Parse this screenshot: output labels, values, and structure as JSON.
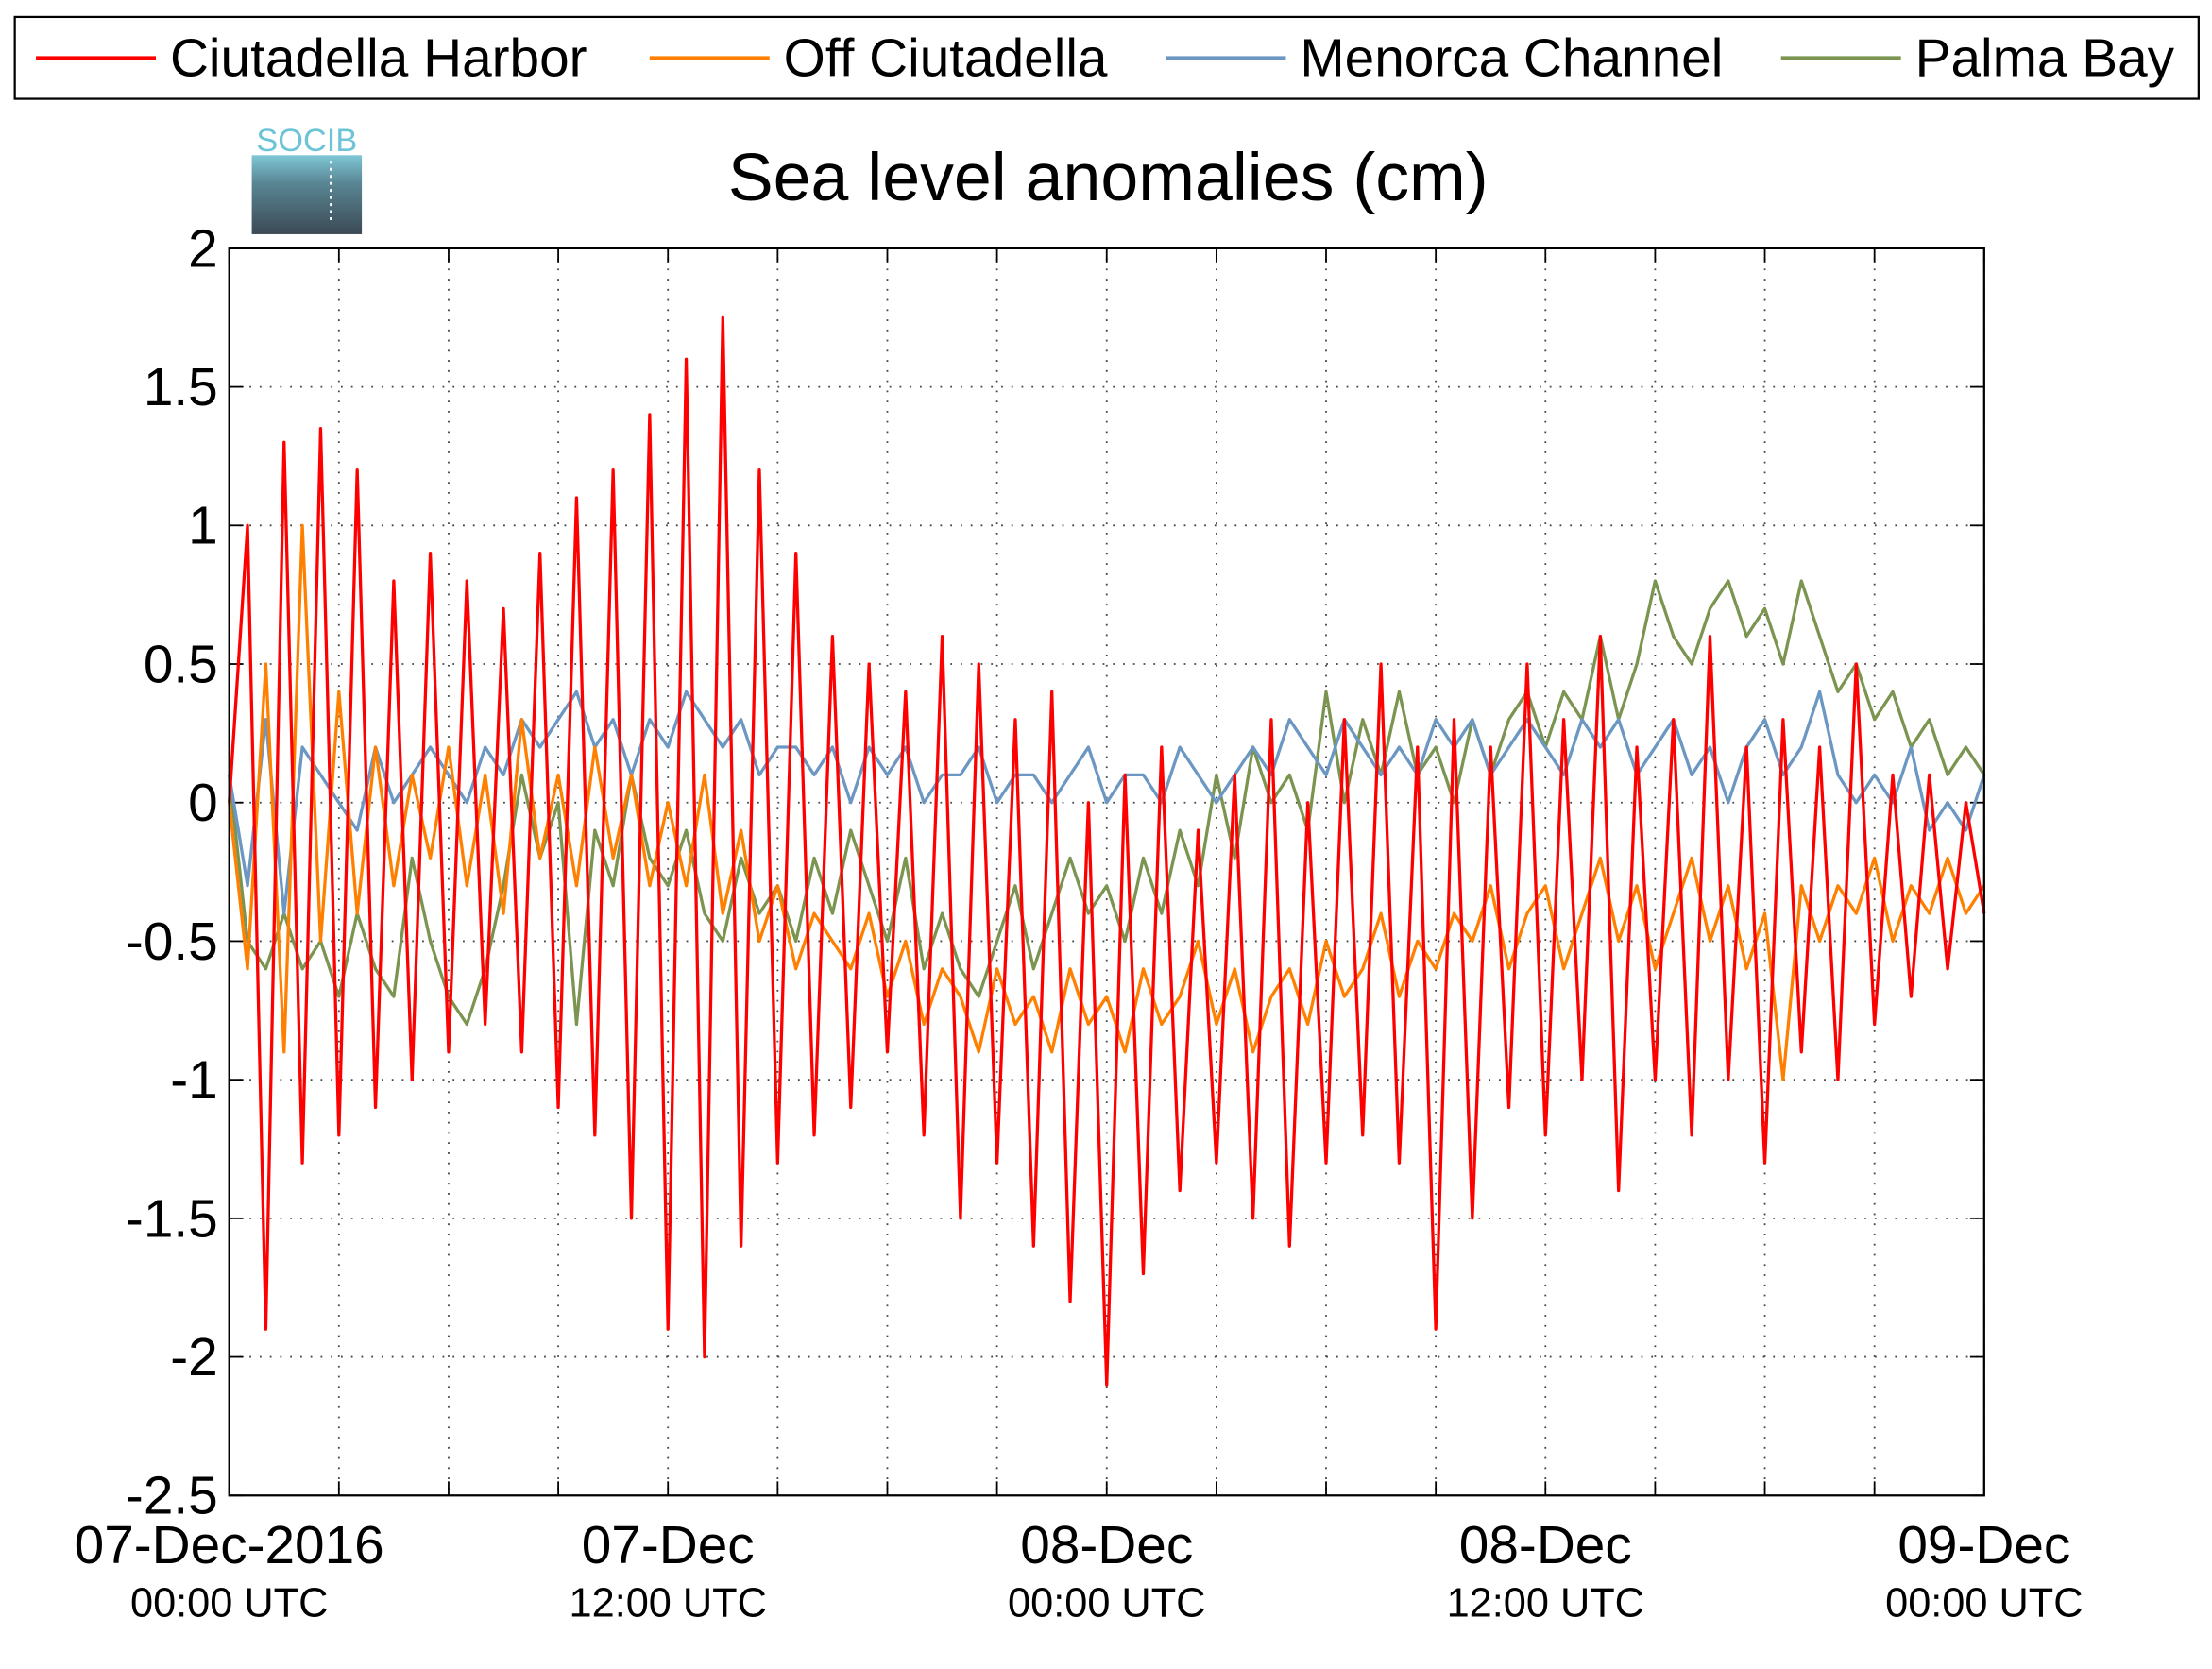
{
  "logo_text": "SOCIB",
  "chart_data": {
    "type": "line",
    "title": "Sea level anomalies (cm)",
    "xlim": [
      "2016-12-07T00:00",
      "2016-12-09T00:00"
    ],
    "xticks": [
      {
        "value": "2016-12-07T00:00",
        "label": "07-Dec-2016\n00:00 UTC"
      },
      {
        "value": "2016-12-07T03:00",
        "label": null
      },
      {
        "value": "2016-12-07T06:00",
        "label": null
      },
      {
        "value": "2016-12-07T09:00",
        "label": null
      },
      {
        "value": "2016-12-07T12:00",
        "label": "07-Dec\n12:00 UTC"
      },
      {
        "value": "2016-12-07T15:00",
        "label": null
      },
      {
        "value": "2016-12-07T18:00",
        "label": null
      },
      {
        "value": "2016-12-07T21:00",
        "label": null
      },
      {
        "value": "2016-12-08T00:00",
        "label": "08-Dec\n00:00 UTC"
      },
      {
        "value": "2016-12-08T03:00",
        "label": null
      },
      {
        "value": "2016-12-08T06:00",
        "label": null
      },
      {
        "value": "2016-12-08T09:00",
        "label": null
      },
      {
        "value": "2016-12-08T12:00",
        "label": "08-Dec\n12:00 UTC"
      },
      {
        "value": "2016-12-08T15:00",
        "label": null
      },
      {
        "value": "2016-12-08T18:00",
        "label": null
      },
      {
        "value": "2016-12-08T21:00",
        "label": null
      },
      {
        "value": "2016-12-09T00:00",
        "label": "09-Dec\n00:00 UTC"
      }
    ],
    "ylim": [
      -2.5,
      2
    ],
    "yticks": [
      -2.5,
      -2,
      -1.5,
      -1,
      -0.5,
      0,
      0.5,
      1,
      1.5,
      2
    ],
    "grid": true,
    "legend": "top",
    "x": [
      "2016-12-07T00:00",
      "2016-12-07T00:30",
      "2016-12-07T01:00",
      "2016-12-07T01:30",
      "2016-12-07T02:00",
      "2016-12-07T02:30",
      "2016-12-07T03:00",
      "2016-12-07T03:30",
      "2016-12-07T04:00",
      "2016-12-07T04:30",
      "2016-12-07T05:00",
      "2016-12-07T05:30",
      "2016-12-07T06:00",
      "2016-12-07T06:30",
      "2016-12-07T07:00",
      "2016-12-07T07:30",
      "2016-12-07T08:00",
      "2016-12-07T08:30",
      "2016-12-07T09:00",
      "2016-12-07T09:30",
      "2016-12-07T10:00",
      "2016-12-07T10:30",
      "2016-12-07T11:00",
      "2016-12-07T11:30",
      "2016-12-07T12:00",
      "2016-12-07T12:30",
      "2016-12-07T13:00",
      "2016-12-07T13:30",
      "2016-12-07T14:00",
      "2016-12-07T14:30",
      "2016-12-07T15:00",
      "2016-12-07T15:30",
      "2016-12-07T16:00",
      "2016-12-07T16:30",
      "2016-12-07T17:00",
      "2016-12-07T17:30",
      "2016-12-07T18:00",
      "2016-12-07T18:30",
      "2016-12-07T19:00",
      "2016-12-07T19:30",
      "2016-12-07T20:00",
      "2016-12-07T20:30",
      "2016-12-07T21:00",
      "2016-12-07T21:30",
      "2016-12-07T22:00",
      "2016-12-07T22:30",
      "2016-12-07T23:00",
      "2016-12-07T23:30",
      "2016-12-08T00:00",
      "2016-12-08T00:30",
      "2016-12-08T01:00",
      "2016-12-08T01:30",
      "2016-12-08T02:00",
      "2016-12-08T02:30",
      "2016-12-08T03:00",
      "2016-12-08T03:30",
      "2016-12-08T04:00",
      "2016-12-08T04:30",
      "2016-12-08T05:00",
      "2016-12-08T05:30",
      "2016-12-08T06:00",
      "2016-12-08T06:30",
      "2016-12-08T07:00",
      "2016-12-08T07:30",
      "2016-12-08T08:00",
      "2016-12-08T08:30",
      "2016-12-08T09:00",
      "2016-12-08T09:30",
      "2016-12-08T10:00",
      "2016-12-08T10:30",
      "2016-12-08T11:00",
      "2016-12-08T11:30",
      "2016-12-08T12:00",
      "2016-12-08T12:30",
      "2016-12-08T13:00",
      "2016-12-08T13:30",
      "2016-12-08T14:00",
      "2016-12-08T14:30",
      "2016-12-08T15:00",
      "2016-12-08T15:30",
      "2016-12-08T16:00",
      "2016-12-08T16:30",
      "2016-12-08T17:00",
      "2016-12-08T17:30",
      "2016-12-08T18:00",
      "2016-12-08T18:30",
      "2016-12-08T19:00",
      "2016-12-08T19:30",
      "2016-12-08T20:00",
      "2016-12-08T20:30",
      "2016-12-08T21:00",
      "2016-12-08T21:30",
      "2016-12-08T22:00",
      "2016-12-08T22:30",
      "2016-12-08T23:00",
      "2016-12-08T23:30",
      "2016-12-09T00:00"
    ],
    "series": [
      {
        "name": "Ciutadella Harbor",
        "color": "#ff0000",
        "values": [
          0.0,
          1.0,
          -1.9,
          1.3,
          -1.3,
          1.35,
          -1.2,
          1.2,
          -1.1,
          0.8,
          -1.0,
          0.9,
          -0.9,
          0.8,
          -0.8,
          0.7,
          -0.9,
          0.9,
          -1.1,
          1.1,
          -1.2,
          1.2,
          -1.5,
          1.4,
          -1.9,
          1.6,
          -2.0,
          1.75,
          -1.6,
          1.2,
          -1.3,
          0.9,
          -1.2,
          0.6,
          -1.1,
          0.5,
          -0.9,
          0.4,
          -1.2,
          0.6,
          -1.5,
          0.5,
          -1.3,
          0.3,
          -1.6,
          0.4,
          -1.8,
          0.0,
          -2.1,
          0.1,
          -1.7,
          0.2,
          -1.4,
          -0.1,
          -1.3,
          0.1,
          -1.5,
          0.3,
          -1.6,
          0.0,
          -1.3,
          0.3,
          -1.2,
          0.5,
          -1.3,
          0.2,
          -1.9,
          0.3,
          -1.5,
          0.2,
          -1.1,
          0.5,
          -1.2,
          0.3,
          -1.0,
          0.6,
          -1.4,
          0.2,
          -1.0,
          0.3,
          -1.2,
          0.6,
          -1.0,
          0.2,
          -1.3,
          0.3,
          -0.9,
          0.2,
          -1.0,
          0.5,
          -0.8,
          0.1,
          -0.7,
          0.1,
          -0.6,
          0.0,
          -0.4
        ]
      },
      {
        "name": "Off Ciutadella",
        "color": "#ff8000",
        "values": [
          0.0,
          -0.6,
          0.5,
          -0.9,
          1.0,
          -0.5,
          0.4,
          -0.4,
          0.2,
          -0.3,
          0.1,
          -0.2,
          0.2,
          -0.3,
          0.1,
          -0.4,
          0.3,
          -0.2,
          0.1,
          -0.3,
          0.2,
          -0.2,
          0.1,
          -0.3,
          0.0,
          -0.3,
          0.1,
          -0.4,
          -0.1,
          -0.5,
          -0.3,
          -0.6,
          -0.4,
          -0.5,
          -0.6,
          -0.4,
          -0.7,
          -0.5,
          -0.8,
          -0.6,
          -0.7,
          -0.9,
          -0.6,
          -0.8,
          -0.7,
          -0.9,
          -0.6,
          -0.8,
          -0.7,
          -0.9,
          -0.6,
          -0.8,
          -0.7,
          -0.5,
          -0.8,
          -0.6,
          -0.9,
          -0.7,
          -0.6,
          -0.8,
          -0.5,
          -0.7,
          -0.6,
          -0.4,
          -0.7,
          -0.5,
          -0.6,
          -0.4,
          -0.5,
          -0.3,
          -0.6,
          -0.4,
          -0.3,
          -0.6,
          -0.4,
          -0.2,
          -0.5,
          -0.3,
          -0.6,
          -0.4,
          -0.2,
          -0.5,
          -0.3,
          -0.6,
          -0.4,
          -1.0,
          -0.3,
          -0.5,
          -0.3,
          -0.4,
          -0.2,
          -0.5,
          -0.3,
          -0.4,
          -0.2,
          -0.4,
          -0.3
        ]
      },
      {
        "name": "Menorca Channel",
        "color": "#6b97c2",
        "values": [
          0.1,
          -0.3,
          0.3,
          -0.4,
          0.2,
          0.1,
          0.0,
          -0.1,
          0.2,
          0.0,
          0.1,
          0.2,
          0.1,
          0.0,
          0.2,
          0.1,
          0.3,
          0.2,
          0.3,
          0.4,
          0.2,
          0.3,
          0.1,
          0.3,
          0.2,
          0.4,
          0.3,
          0.2,
          0.3,
          0.1,
          0.2,
          0.2,
          0.1,
          0.2,
          0.0,
          0.2,
          0.1,
          0.2,
          0.0,
          0.1,
          0.1,
          0.2,
          0.0,
          0.1,
          0.1,
          0.0,
          0.1,
          0.2,
          0.0,
          0.1,
          0.1,
          0.0,
          0.2,
          0.1,
          0.0,
          0.1,
          0.2,
          0.1,
          0.3,
          0.2,
          0.1,
          0.3,
          0.2,
          0.1,
          0.2,
          0.1,
          0.3,
          0.2,
          0.3,
          0.1,
          0.2,
          0.3,
          0.2,
          0.1,
          0.3,
          0.2,
          0.3,
          0.1,
          0.2,
          0.3,
          0.1,
          0.2,
          0.0,
          0.2,
          0.3,
          0.1,
          0.2,
          0.4,
          0.1,
          0.0,
          0.1,
          0.0,
          0.2,
          -0.1,
          0.0,
          -0.1,
          0.1
        ]
      },
      {
        "name": "Palma Bay",
        "color": "#7b9450",
        "values": [
          0.1,
          -0.5,
          -0.6,
          -0.4,
          -0.6,
          -0.5,
          -0.7,
          -0.4,
          -0.6,
          -0.7,
          -0.2,
          -0.5,
          -0.7,
          -0.8,
          -0.6,
          -0.3,
          0.1,
          -0.2,
          0.0,
          -0.8,
          -0.1,
          -0.3,
          0.1,
          -0.2,
          -0.3,
          -0.1,
          -0.4,
          -0.5,
          -0.2,
          -0.4,
          -0.3,
          -0.5,
          -0.2,
          -0.4,
          -0.1,
          -0.3,
          -0.5,
          -0.2,
          -0.6,
          -0.4,
          -0.6,
          -0.7,
          -0.5,
          -0.3,
          -0.6,
          -0.4,
          -0.2,
          -0.4,
          -0.3,
          -0.5,
          -0.2,
          -0.4,
          -0.1,
          -0.3,
          0.1,
          -0.2,
          0.2,
          0.0,
          0.1,
          -0.1,
          0.4,
          0.0,
          0.3,
          0.1,
          0.4,
          0.1,
          0.2,
          0.0,
          0.3,
          0.1,
          0.3,
          0.4,
          0.2,
          0.4,
          0.3,
          0.6,
          0.3,
          0.5,
          0.8,
          0.6,
          0.5,
          0.7,
          0.8,
          0.6,
          0.7,
          0.5,
          0.8,
          0.6,
          0.4,
          0.5,
          0.3,
          0.4,
          0.2,
          0.3,
          0.1,
          0.2,
          0.1
        ]
      }
    ]
  }
}
